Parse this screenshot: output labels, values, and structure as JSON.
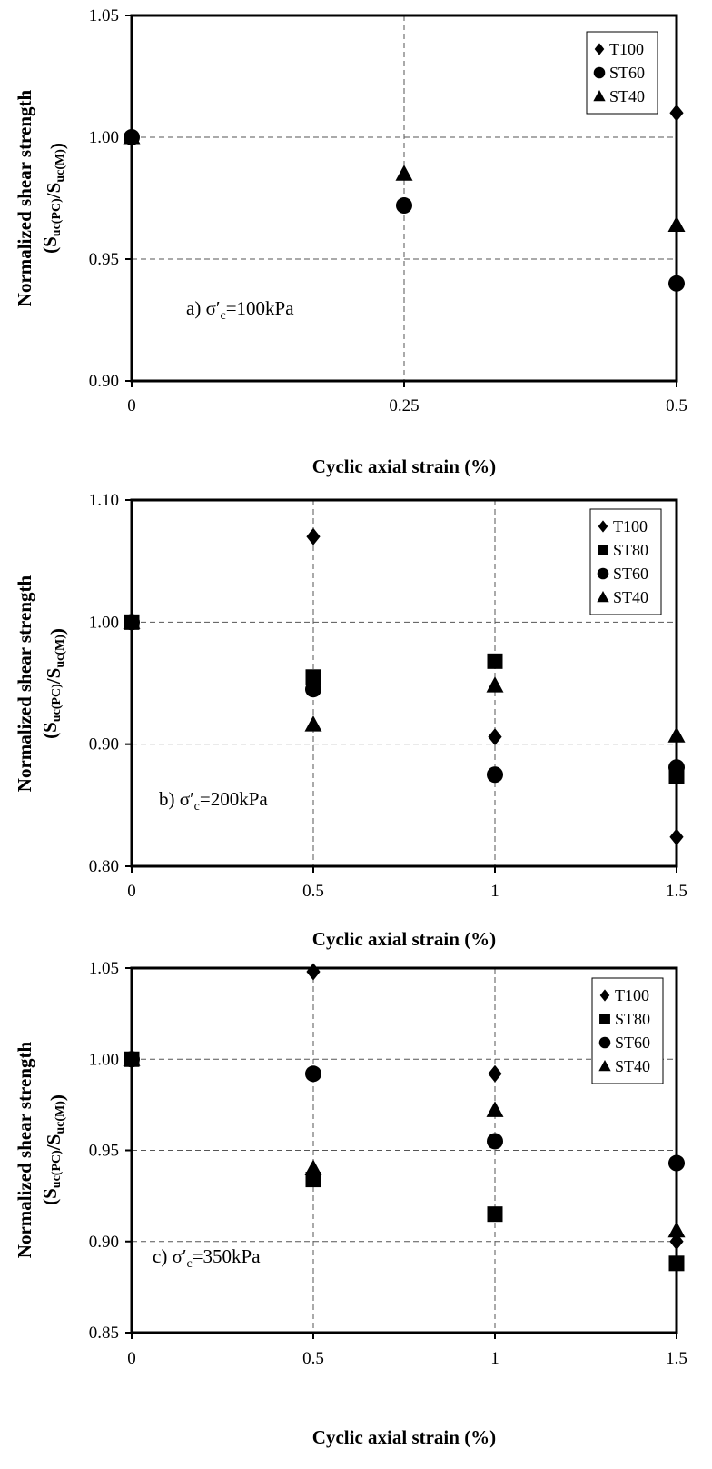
{
  "chart_data": [
    {
      "type": "scatter",
      "panel": "a",
      "annotation": {
        "prefix": "a) σ′",
        "sub": "c",
        "suffix": "=100kPa"
      },
      "ylabel": "Normalized shear strength",
      "ylabel2": {
        "S1": "S",
        "sub1": "uc(PC)",
        "slash": "/S",
        "sub2": "uc(M)",
        "open": "(",
        "close": ")"
      },
      "xlabel": "Cyclic axial strain (%)",
      "xlim": [
        0,
        0.5
      ],
      "ylim": [
        0.9,
        1.05
      ],
      "x_ticks": [
        0,
        0.25,
        0.5
      ],
      "x_tick_labels": [
        "0",
        "0.25",
        "0.5"
      ],
      "y_ticks": [
        0.9,
        0.95,
        1.0,
        1.05
      ],
      "y_tick_labels": [
        "0.90",
        "0.95",
        "1.00",
        "1.05"
      ],
      "grid": "dashed",
      "legend_position": "top-right",
      "series": [
        {
          "name": "T100",
          "marker": "diamond",
          "points": [
            [
              0,
              1.0
            ],
            [
              0.5,
              1.01
            ]
          ]
        },
        {
          "name": "ST60",
          "marker": "circle",
          "points": [
            [
              0,
              1.0
            ],
            [
              0.25,
              0.972
            ],
            [
              0.5,
              0.94
            ]
          ]
        },
        {
          "name": "ST40",
          "marker": "triangle",
          "points": [
            [
              0,
              1.0
            ],
            [
              0.25,
              0.985
            ],
            [
              0.5,
              0.964
            ]
          ]
        }
      ]
    },
    {
      "type": "scatter",
      "panel": "b",
      "annotation": {
        "prefix": "b) σ′",
        "sub": "c",
        "suffix": "=200kPa"
      },
      "ylabel": "Normalized shear strength",
      "ylabel2": {
        "S1": "S",
        "sub1": "uc(PC)",
        "slash": "/S",
        "sub2": "uc(M)",
        "open": "(",
        "close": ")"
      },
      "xlabel": "Cyclic axial strain (%)",
      "xlim": [
        0,
        1.5
      ],
      "ylim": [
        0.8,
        1.1
      ],
      "x_ticks": [
        0,
        0.5,
        1,
        1.5
      ],
      "x_tick_labels": [
        "0",
        "0.5",
        "1",
        "1.5"
      ],
      "y_ticks": [
        0.8,
        0.9,
        1.0,
        1.1
      ],
      "y_tick_labels": [
        "0.80",
        "0.90",
        "1.00",
        "1.10"
      ],
      "grid": "dashed",
      "legend_position": "top-right",
      "series": [
        {
          "name": "T100",
          "marker": "diamond",
          "points": [
            [
              0,
              1.0
            ],
            [
              0.5,
              1.07
            ],
            [
              1,
              0.906
            ],
            [
              1.5,
              0.824
            ]
          ]
        },
        {
          "name": "ST80",
          "marker": "square",
          "points": [
            [
              0,
              1.0
            ],
            [
              0.5,
              0.955
            ],
            [
              1,
              0.968
            ],
            [
              1.5,
              0.874
            ]
          ]
        },
        {
          "name": "ST60",
          "marker": "circle",
          "points": [
            [
              0,
              1.0
            ],
            [
              0.5,
              0.945
            ],
            [
              1,
              0.875
            ],
            [
              1.5,
              0.881
            ]
          ]
        },
        {
          "name": "ST40",
          "marker": "triangle",
          "points": [
            [
              0,
              1.0
            ],
            [
              0.5,
              0.916
            ],
            [
              1,
              0.948
            ],
            [
              1.5,
              0.907
            ]
          ]
        }
      ]
    },
    {
      "type": "scatter",
      "panel": "c",
      "annotation": {
        "prefix": "c) σ′",
        "sub": "c",
        "suffix": "=350kPa"
      },
      "ylabel": "Normalized shear strength",
      "ylabel2": {
        "S1": "S",
        "sub1": "uc(PC)",
        "slash": "/S",
        "sub2": "uc(M)",
        "open": "(",
        "close": ")"
      },
      "xlabel": "Cyclic axial strain (%)",
      "xlim": [
        0,
        1.5
      ],
      "ylim": [
        0.85,
        1.05
      ],
      "x_ticks": [
        0,
        0.5,
        1,
        1.5
      ],
      "x_tick_labels": [
        "0",
        "0.5",
        "1",
        "1.5"
      ],
      "y_ticks": [
        0.85,
        0.9,
        0.95,
        1.0,
        1.05
      ],
      "y_tick_labels": [
        "0.85",
        "0.90",
        "0.95",
        "1.00",
        "1.05"
      ],
      "grid": "dashed",
      "legend_position": "top-right",
      "series": [
        {
          "name": "T100",
          "marker": "diamond",
          "points": [
            [
              0,
              1.0
            ],
            [
              0.5,
              1.048
            ],
            [
              1,
              0.992
            ],
            [
              1.5,
              0.9
            ]
          ]
        },
        {
          "name": "ST80",
          "marker": "square",
          "points": [
            [
              0,
              1.0
            ],
            [
              0.5,
              0.934
            ],
            [
              1,
              0.915
            ],
            [
              1.5,
              0.888
            ]
          ]
        },
        {
          "name": "ST60",
          "marker": "circle",
          "points": [
            [
              0,
              1.0
            ],
            [
              0.5,
              0.992
            ],
            [
              1,
              0.955
            ],
            [
              1.5,
              0.943
            ]
          ]
        },
        {
          "name": "ST40",
          "marker": "triangle",
          "points": [
            [
              0,
              1.0
            ],
            [
              0.5,
              0.94
            ],
            [
              1,
              0.972
            ],
            [
              1.5,
              0.906
            ]
          ]
        }
      ]
    }
  ]
}
